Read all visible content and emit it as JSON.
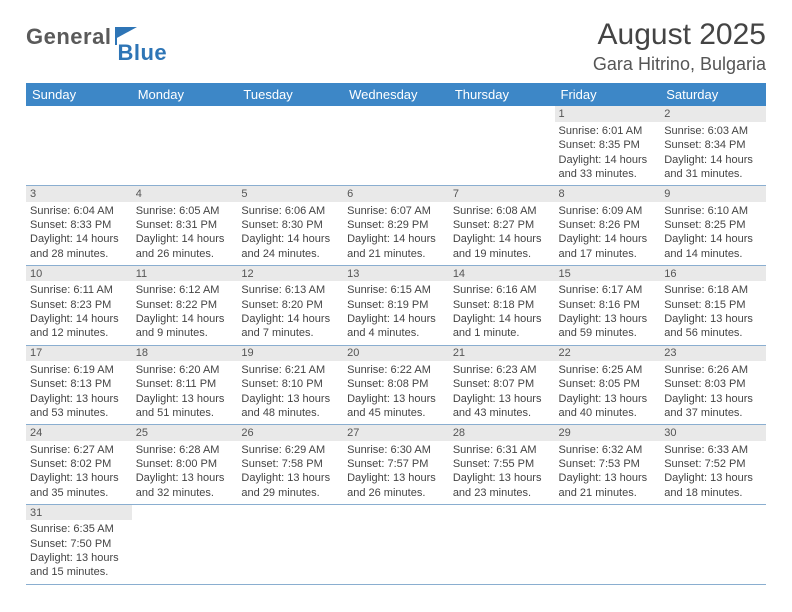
{
  "brand": {
    "part1": "General",
    "part2": "Blue"
  },
  "title": "August 2025",
  "location": "Gara Hitrino, Bulgaria",
  "colors": {
    "header_bg": "#3d87c7",
    "header_text": "#ffffff",
    "row_border": "#8aaed0",
    "daynum_bg": "#e9e9e9",
    "logo_gray": "#5a5a5a",
    "logo_blue": "#2e75b6"
  },
  "weekdays": [
    "Sunday",
    "Monday",
    "Tuesday",
    "Wednesday",
    "Thursday",
    "Friday",
    "Saturday"
  ],
  "weeks": [
    [
      null,
      null,
      null,
      null,
      null,
      {
        "n": "1",
        "sunrise": "Sunrise: 6:01 AM",
        "sunset": "Sunset: 8:35 PM",
        "day": "Daylight: 14 hours and 33 minutes."
      },
      {
        "n": "2",
        "sunrise": "Sunrise: 6:03 AM",
        "sunset": "Sunset: 8:34 PM",
        "day": "Daylight: 14 hours and 31 minutes."
      }
    ],
    [
      {
        "n": "3",
        "sunrise": "Sunrise: 6:04 AM",
        "sunset": "Sunset: 8:33 PM",
        "day": "Daylight: 14 hours and 28 minutes."
      },
      {
        "n": "4",
        "sunrise": "Sunrise: 6:05 AM",
        "sunset": "Sunset: 8:31 PM",
        "day": "Daylight: 14 hours and 26 minutes."
      },
      {
        "n": "5",
        "sunrise": "Sunrise: 6:06 AM",
        "sunset": "Sunset: 8:30 PM",
        "day": "Daylight: 14 hours and 24 minutes."
      },
      {
        "n": "6",
        "sunrise": "Sunrise: 6:07 AM",
        "sunset": "Sunset: 8:29 PM",
        "day": "Daylight: 14 hours and 21 minutes."
      },
      {
        "n": "7",
        "sunrise": "Sunrise: 6:08 AM",
        "sunset": "Sunset: 8:27 PM",
        "day": "Daylight: 14 hours and 19 minutes."
      },
      {
        "n": "8",
        "sunrise": "Sunrise: 6:09 AM",
        "sunset": "Sunset: 8:26 PM",
        "day": "Daylight: 14 hours and 17 minutes."
      },
      {
        "n": "9",
        "sunrise": "Sunrise: 6:10 AM",
        "sunset": "Sunset: 8:25 PM",
        "day": "Daylight: 14 hours and 14 minutes."
      }
    ],
    [
      {
        "n": "10",
        "sunrise": "Sunrise: 6:11 AM",
        "sunset": "Sunset: 8:23 PM",
        "day": "Daylight: 14 hours and 12 minutes."
      },
      {
        "n": "11",
        "sunrise": "Sunrise: 6:12 AM",
        "sunset": "Sunset: 8:22 PM",
        "day": "Daylight: 14 hours and 9 minutes."
      },
      {
        "n": "12",
        "sunrise": "Sunrise: 6:13 AM",
        "sunset": "Sunset: 8:20 PM",
        "day": "Daylight: 14 hours and 7 minutes."
      },
      {
        "n": "13",
        "sunrise": "Sunrise: 6:15 AM",
        "sunset": "Sunset: 8:19 PM",
        "day": "Daylight: 14 hours and 4 minutes."
      },
      {
        "n": "14",
        "sunrise": "Sunrise: 6:16 AM",
        "sunset": "Sunset: 8:18 PM",
        "day": "Daylight: 14 hours and 1 minute."
      },
      {
        "n": "15",
        "sunrise": "Sunrise: 6:17 AM",
        "sunset": "Sunset: 8:16 PM",
        "day": "Daylight: 13 hours and 59 minutes."
      },
      {
        "n": "16",
        "sunrise": "Sunrise: 6:18 AM",
        "sunset": "Sunset: 8:15 PM",
        "day": "Daylight: 13 hours and 56 minutes."
      }
    ],
    [
      {
        "n": "17",
        "sunrise": "Sunrise: 6:19 AM",
        "sunset": "Sunset: 8:13 PM",
        "day": "Daylight: 13 hours and 53 minutes."
      },
      {
        "n": "18",
        "sunrise": "Sunrise: 6:20 AM",
        "sunset": "Sunset: 8:11 PM",
        "day": "Daylight: 13 hours and 51 minutes."
      },
      {
        "n": "19",
        "sunrise": "Sunrise: 6:21 AM",
        "sunset": "Sunset: 8:10 PM",
        "day": "Daylight: 13 hours and 48 minutes."
      },
      {
        "n": "20",
        "sunrise": "Sunrise: 6:22 AM",
        "sunset": "Sunset: 8:08 PM",
        "day": "Daylight: 13 hours and 45 minutes."
      },
      {
        "n": "21",
        "sunrise": "Sunrise: 6:23 AM",
        "sunset": "Sunset: 8:07 PM",
        "day": "Daylight: 13 hours and 43 minutes."
      },
      {
        "n": "22",
        "sunrise": "Sunrise: 6:25 AM",
        "sunset": "Sunset: 8:05 PM",
        "day": "Daylight: 13 hours and 40 minutes."
      },
      {
        "n": "23",
        "sunrise": "Sunrise: 6:26 AM",
        "sunset": "Sunset: 8:03 PM",
        "day": "Daylight: 13 hours and 37 minutes."
      }
    ],
    [
      {
        "n": "24",
        "sunrise": "Sunrise: 6:27 AM",
        "sunset": "Sunset: 8:02 PM",
        "day": "Daylight: 13 hours and 35 minutes."
      },
      {
        "n": "25",
        "sunrise": "Sunrise: 6:28 AM",
        "sunset": "Sunset: 8:00 PM",
        "day": "Daylight: 13 hours and 32 minutes."
      },
      {
        "n": "26",
        "sunrise": "Sunrise: 6:29 AM",
        "sunset": "Sunset: 7:58 PM",
        "day": "Daylight: 13 hours and 29 minutes."
      },
      {
        "n": "27",
        "sunrise": "Sunrise: 6:30 AM",
        "sunset": "Sunset: 7:57 PM",
        "day": "Daylight: 13 hours and 26 minutes."
      },
      {
        "n": "28",
        "sunrise": "Sunrise: 6:31 AM",
        "sunset": "Sunset: 7:55 PM",
        "day": "Daylight: 13 hours and 23 minutes."
      },
      {
        "n": "29",
        "sunrise": "Sunrise: 6:32 AM",
        "sunset": "Sunset: 7:53 PM",
        "day": "Daylight: 13 hours and 21 minutes."
      },
      {
        "n": "30",
        "sunrise": "Sunrise: 6:33 AM",
        "sunset": "Sunset: 7:52 PM",
        "day": "Daylight: 13 hours and 18 minutes."
      }
    ],
    [
      {
        "n": "31",
        "sunrise": "Sunrise: 6:35 AM",
        "sunset": "Sunset: 7:50 PM",
        "day": "Daylight: 13 hours and 15 minutes."
      },
      null,
      null,
      null,
      null,
      null,
      null
    ]
  ]
}
